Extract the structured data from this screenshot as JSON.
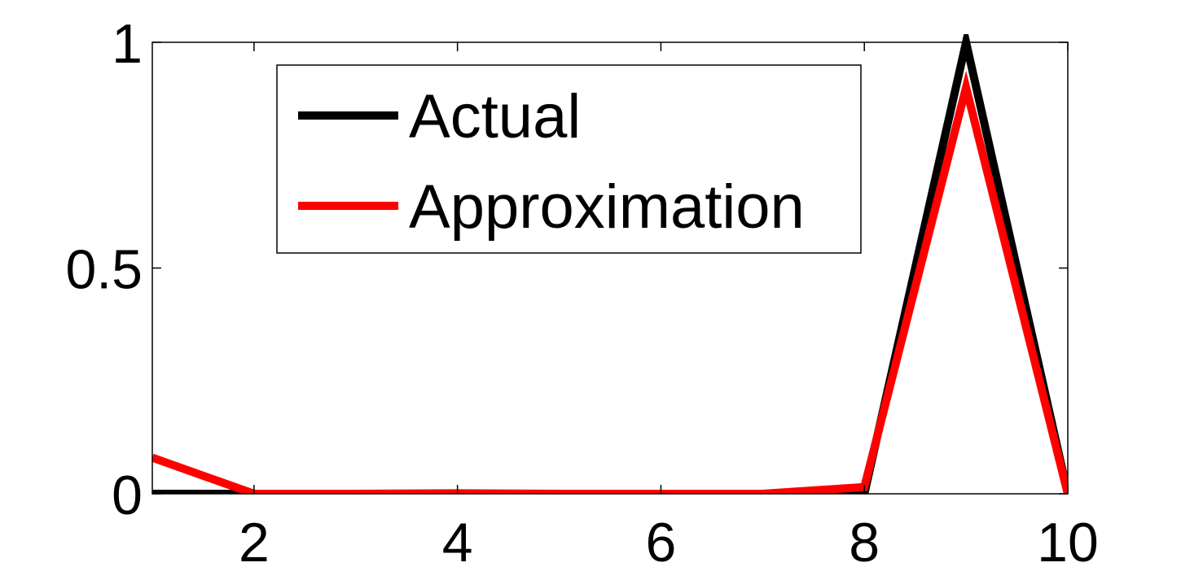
{
  "chart_data": {
    "type": "line",
    "title": "",
    "xlabel": "",
    "ylabel": "",
    "xlim": [
      1,
      10
    ],
    "ylim": [
      0,
      1
    ],
    "x_ticks": [
      2,
      4,
      6,
      8,
      10
    ],
    "x_tick_labels": [
      "2",
      "4",
      "6",
      "8",
      "10"
    ],
    "y_ticks": [
      0,
      0.5,
      1
    ],
    "y_tick_labels": [
      "0",
      "0.5",
      "1"
    ],
    "grid": false,
    "legend_position": "top-left",
    "x": [
      1,
      2,
      3,
      4,
      5,
      6,
      7,
      8,
      9,
      10
    ],
    "series": [
      {
        "name": "Actual",
        "color": "#000000",
        "values": [
          0,
          0,
          0,
          0,
          0,
          0,
          0,
          0,
          1,
          0
        ]
      },
      {
        "name": "Approximation",
        "color": "#ff0000",
        "values": [
          0.08,
          0,
          0,
          0.001,
          0,
          0,
          0,
          0.015,
          0.9,
          0
        ]
      }
    ]
  }
}
